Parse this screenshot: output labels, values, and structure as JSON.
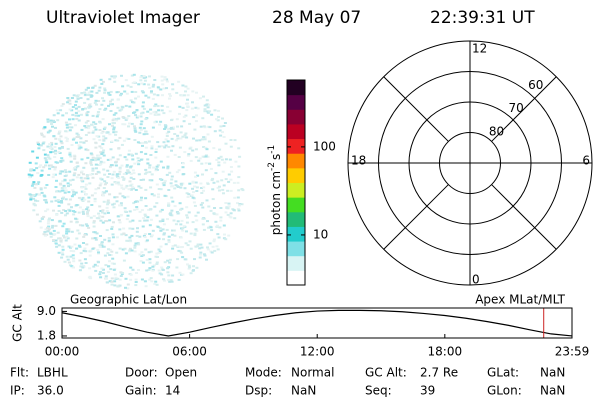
{
  "header": {
    "instrument": "Ultraviolet Imager",
    "date": "28 May 07",
    "time": "22:39:31 UT"
  },
  "colorbar": {
    "scale": "log",
    "clim": [
      2.7,
      575
    ],
    "ticks": [
      10,
      100
    ],
    "label": [
      "photon cm",
      "-2",
      "s",
      "-1"
    ],
    "colors": [
      "#ffffff",
      "#d8f4f4",
      "#7fe0e6",
      "#22cccc",
      "#22bb77",
      "#44dd22",
      "#ccee22",
      "#ffcc00",
      "#ff8800",
      "#ee2222",
      "#bb0022",
      "#880033",
      "#550044",
      "#220022"
    ]
  },
  "polar": {
    "lat_rings": [
      80,
      70,
      60,
      50
    ],
    "lat_labels": [
      80,
      70,
      60
    ],
    "mlt_labels": [
      "12",
      "6",
      "0",
      "18"
    ]
  },
  "chart_data": {
    "type": "line",
    "title_left": "Geographic Lat/Lon",
    "title_right": "Apex MLat/MLT",
    "ylabel": "GC Alt",
    "x": [
      0,
      1,
      2,
      3,
      4,
      5,
      6,
      7,
      8,
      9,
      10,
      11,
      12,
      13,
      14,
      15,
      16,
      17,
      18,
      19,
      20,
      21,
      22,
      23,
      23.98
    ],
    "series": [
      {
        "name": "GC Alt",
        "color": "#000000",
        "values": [
          8.6,
          7.4,
          6.0,
          4.4,
          2.9,
          1.8,
          2.9,
          4.3,
          5.6,
          6.8,
          7.8,
          8.6,
          9.1,
          9.3,
          9.3,
          9.2,
          8.9,
          8.4,
          7.8,
          7.0,
          6.0,
          4.9,
          3.6,
          2.4,
          1.8
        ]
      }
    ],
    "current_time": 22.65,
    "current_color": "#cc2222",
    "xlim": [
      0,
      23.98
    ],
    "ylim": [
      1.2,
      10
    ],
    "xticks": [
      {
        "value": 0,
        "label": "00:00"
      },
      {
        "value": 6,
        "label": "06:00"
      },
      {
        "value": 12,
        "label": "12:00"
      },
      {
        "value": 18,
        "label": "18:00"
      },
      {
        "value": 23.98,
        "label": "23:59"
      }
    ],
    "yticks": [
      {
        "value": 9,
        "label": "9.0"
      },
      {
        "value": 1.8,
        "label": "1.8"
      }
    ]
  },
  "footer": [
    [
      [
        "Flt:",
        "LBHL"
      ],
      [
        "Door:",
        "Open"
      ],
      [
        "Mode:",
        "Normal"
      ],
      [
        "GC Alt:",
        "2.7 Re"
      ],
      [
        "GLat:",
        "NaN"
      ]
    ],
    [
      [
        "IP:",
        "36.0"
      ],
      [
        "Gain:",
        "14"
      ],
      [
        "Dsp:",
        "NaN"
      ],
      [
        "Seq:",
        "39"
      ],
      [
        "GLon:",
        "NaN"
      ]
    ]
  ]
}
